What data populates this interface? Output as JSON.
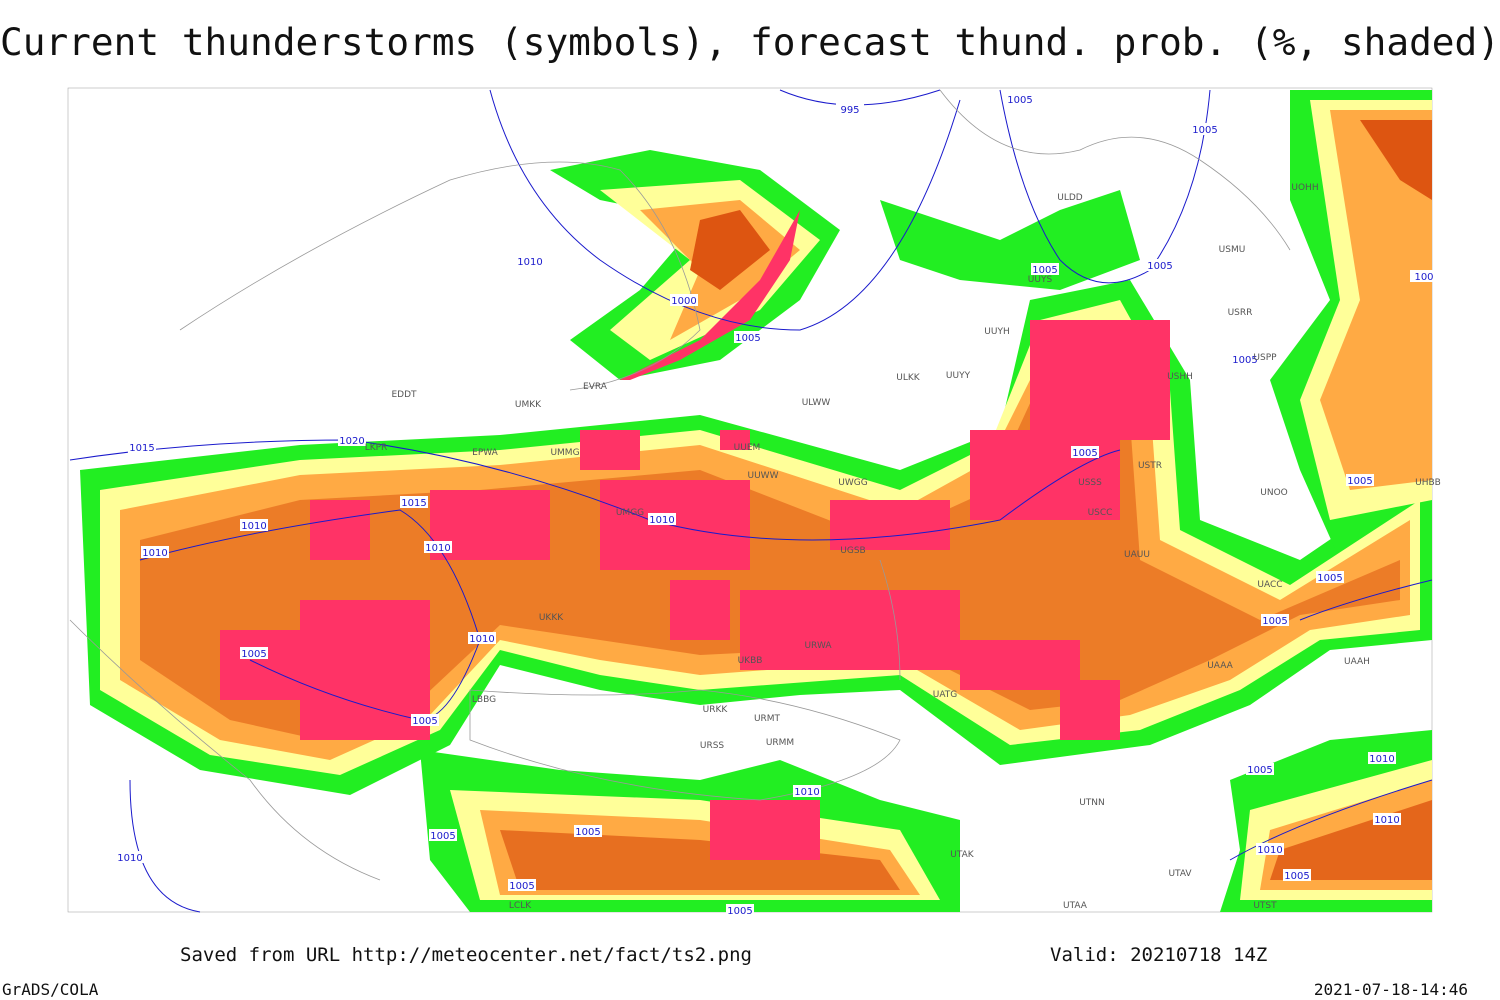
{
  "title": "Current thunderstorms (symbols), forecast thund. prob. (%, shaded)",
  "footer": {
    "saved": "Saved from URL http://meteocenter.net/fact/ts2.png",
    "valid": "Valid: 20210718 14Z",
    "software": "GrADS/COLA",
    "timestamp": "2021-07-18-14:46"
  },
  "map": {
    "isobar_labels": [
      "995",
      "1005",
      "1005",
      "1010",
      "1000",
      "1005",
      "1005",
      "1005",
      "1005",
      "1015",
      "1020",
      "1015",
      "1010",
      "1010",
      "1010",
      "1010",
      "1005",
      "1005",
      "1005",
      "1005",
      "1010",
      "1005",
      "1005",
      "1010",
      "1005",
      "1005",
      "1010",
      "1005",
      "1005",
      "1005",
      "1010",
      "1010",
      "1010",
      "1005",
      "100"
    ],
    "station_labels": [
      "ULDD",
      "USMU",
      "UUYS",
      "UUYH",
      "USRR",
      "ULKK",
      "UUYY",
      "ULWW",
      "EDDT",
      "EVRA",
      "UMKK",
      "EPWA",
      "UMMG",
      "UMGG",
      "UKBB",
      "UUEM",
      "UUWW",
      "UWGG",
      "UKKK",
      "USSS",
      "USTR",
      "USCC",
      "UAUU",
      "UACC",
      "UNOO",
      "UAAA",
      "UAAH",
      "UATG",
      "URKK",
      "URMT",
      "URMM",
      "URSS",
      "URWA",
      "UGSB",
      "LBBG",
      "UTAK",
      "UTNN",
      "UTAA",
      "UTAV",
      "UTST",
      "LCLK",
      "UOHH",
      "UHBB",
      "USHH",
      "USPP",
      "LKPR"
    ]
  }
}
